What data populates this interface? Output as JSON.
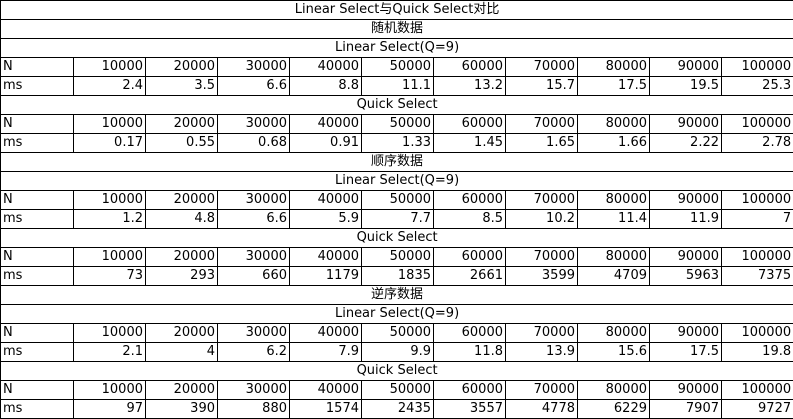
{
  "title": "Linear Select与Quick Select对比",
  "row_labels": {
    "n": "N",
    "ms": "ms"
  },
  "sections": [
    {
      "heading": "随机数据",
      "tables": [
        {
          "algo": "Linear Select(Q=9)",
          "n": [
            "10000",
            "20000",
            "30000",
            "40000",
            "50000",
            "60000",
            "70000",
            "80000",
            "90000",
            "100000"
          ],
          "ms": [
            "2.4",
            "3.5",
            "6.6",
            "8.8",
            "11.1",
            "13.2",
            "15.7",
            "17.5",
            "19.5",
            "25.3"
          ]
        },
        {
          "algo": "Quick Select",
          "n": [
            "10000",
            "20000",
            "30000",
            "40000",
            "50000",
            "60000",
            "70000",
            "80000",
            "90000",
            "100000"
          ],
          "ms": [
            "0.17",
            "0.55",
            "0.68",
            "0.91",
            "1.33",
            "1.45",
            "1.65",
            "1.66",
            "2.22",
            "2.78"
          ]
        }
      ]
    },
    {
      "heading": "顺序数据",
      "tables": [
        {
          "algo": "Linear Select(Q=9)",
          "n": [
            "10000",
            "20000",
            "30000",
            "40000",
            "50000",
            "60000",
            "70000",
            "80000",
            "90000",
            "100000"
          ],
          "ms": [
            "1.2",
            "4.8",
            "6.6",
            "5.9",
            "7.7",
            "8.5",
            "10.2",
            "11.4",
            "11.9",
            "7"
          ]
        },
        {
          "algo": "Quick Select",
          "n": [
            "10000",
            "20000",
            "30000",
            "40000",
            "50000",
            "60000",
            "70000",
            "80000",
            "90000",
            "100000"
          ],
          "ms": [
            "73",
            "293",
            "660",
            "1179",
            "1835",
            "2661",
            "3599",
            "4709",
            "5963",
            "7375"
          ]
        }
      ]
    },
    {
      "heading": "逆序数据",
      "tables": [
        {
          "algo": "Linear Select(Q=9)",
          "n": [
            "10000",
            "20000",
            "30000",
            "40000",
            "50000",
            "60000",
            "70000",
            "80000",
            "90000",
            "100000"
          ],
          "ms": [
            "2.1",
            "4",
            "6.2",
            "7.9",
            "9.9",
            "11.8",
            "13.9",
            "15.6",
            "17.5",
            "19.8"
          ]
        },
        {
          "algo": "Quick Select",
          "n": [
            "10000",
            "20000",
            "30000",
            "40000",
            "50000",
            "60000",
            "70000",
            "80000",
            "90000",
            "100000"
          ],
          "ms": [
            "97",
            "390",
            "880",
            "1574",
            "2435",
            "3557",
            "4778",
            "6229",
            "7907",
            "9727"
          ]
        }
      ]
    }
  ]
}
